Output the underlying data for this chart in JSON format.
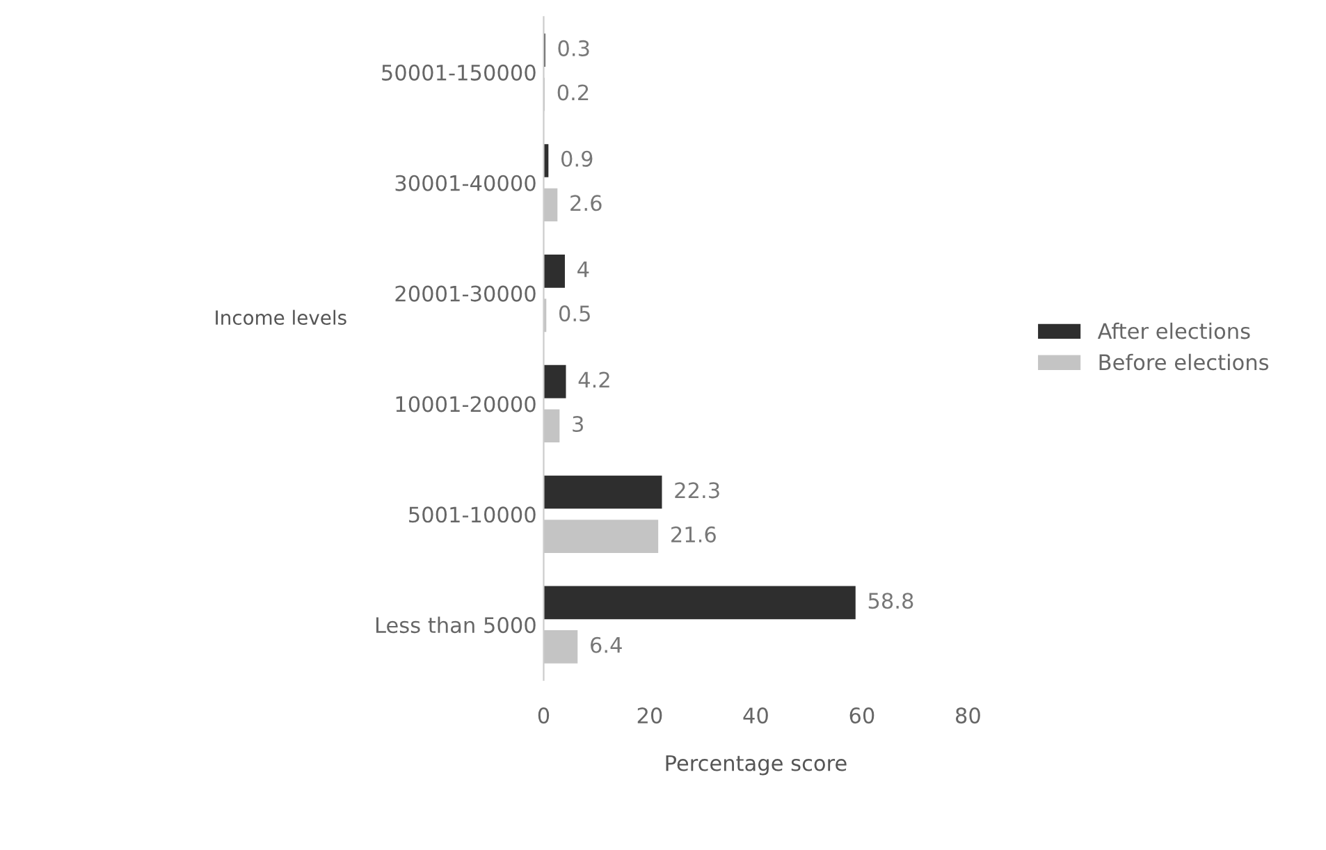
{
  "chart_data": {
    "type": "bar",
    "orientation": "horizontal",
    "categories": [
      "50001-150000",
      "30001-40000",
      "20001-30000",
      "10001-20000",
      "5001-10000",
      "Less than 5000"
    ],
    "series": [
      {
        "name": "After elections",
        "color": "#2e2e2e",
        "values": [
          0.3,
          0.9,
          4,
          4.2,
          22.3,
          58.8
        ]
      },
      {
        "name": "Before elections",
        "color": "#c4c4c4",
        "values": [
          0.2,
          2.6,
          0.5,
          3,
          21.6,
          6.4
        ]
      }
    ],
    "xlabel": "Percentage score",
    "ylabel": "Income levels",
    "xlim": [
      0,
      80
    ],
    "xticks": [
      0,
      20,
      40,
      60,
      80
    ],
    "data_labels": true,
    "grid": false,
    "legend": "right"
  }
}
